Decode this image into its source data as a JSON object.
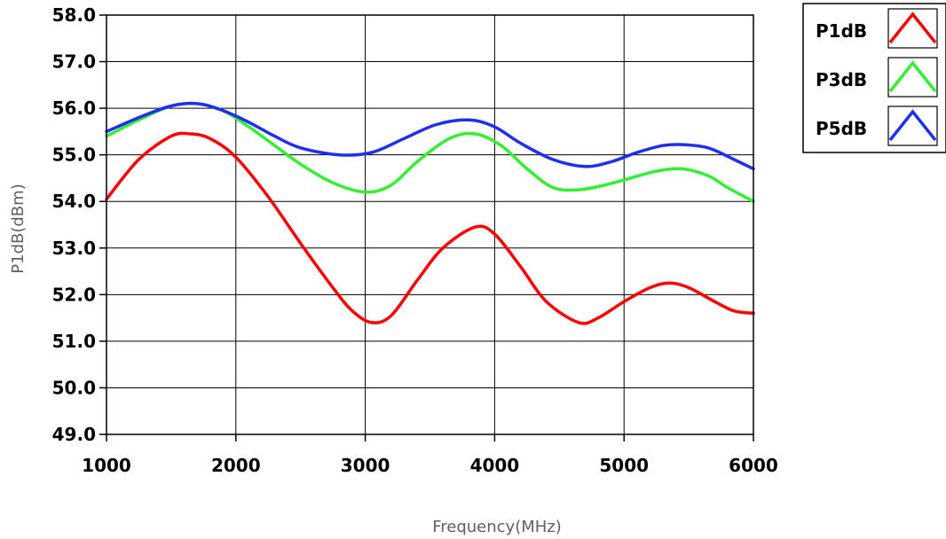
{
  "chart_data": {
    "type": "line",
    "title": "",
    "xlabel": "Frequency(MHz)",
    "ylabel": "P1dB(dBm)",
    "xlim": [
      1000,
      6000
    ],
    "ylim": [
      49,
      58
    ],
    "x_ticks": [
      "1000",
      "2000",
      "3000",
      "4000",
      "5000",
      "6000"
    ],
    "y_ticks": [
      "49.0",
      "50.0",
      "51.0",
      "52.0",
      "53.0",
      "54.0",
      "55.0",
      "56.0",
      "57.0",
      "58.0"
    ],
    "grid": true,
    "legend_position": "top-right outside",
    "series": [
      {
        "name": "P1dB",
        "color": "#ff0000",
        "x": [
          1000,
          1250,
          1500,
          1650,
          1800,
          2000,
          2250,
          2500,
          2750,
          2900,
          3050,
          3200,
          3400,
          3600,
          3850,
          4000,
          4200,
          4400,
          4650,
          4800,
          5000,
          5200,
          5350,
          5500,
          5700,
          5850,
          6000
        ],
        "y": [
          54.05,
          54.9,
          55.4,
          55.45,
          55.35,
          54.95,
          54.1,
          53.1,
          52.15,
          51.65,
          51.4,
          51.55,
          52.3,
          53.0,
          53.45,
          53.3,
          52.6,
          51.85,
          51.4,
          51.5,
          51.85,
          52.15,
          52.25,
          52.15,
          51.85,
          51.65,
          51.6
        ]
      },
      {
        "name": "P3dB",
        "color": "#33ee33",
        "x": [
          1000,
          1250,
          1500,
          1700,
          1900,
          2100,
          2300,
          2500,
          2750,
          3000,
          3200,
          3400,
          3650,
          3850,
          4050,
          4250,
          4450,
          4650,
          4850,
          5050,
          5250,
          5450,
          5650,
          5800,
          6000
        ],
        "y": [
          55.4,
          55.75,
          56.05,
          56.1,
          55.95,
          55.6,
          55.2,
          54.8,
          54.4,
          54.2,
          54.35,
          54.85,
          55.35,
          55.45,
          55.2,
          54.7,
          54.3,
          54.25,
          54.35,
          54.5,
          54.65,
          54.7,
          54.55,
          54.3,
          54.0
        ]
      },
      {
        "name": "P5dB",
        "color": "#1f2ff0",
        "x": [
          1000,
          1250,
          1500,
          1700,
          1900,
          2100,
          2300,
          2500,
          2800,
          3050,
          3300,
          3550,
          3800,
          4000,
          4200,
          4450,
          4700,
          4900,
          5100,
          5300,
          5450,
          5650,
          5850,
          6000
        ],
        "y": [
          55.5,
          55.8,
          56.05,
          56.1,
          55.95,
          55.7,
          55.4,
          55.15,
          55.0,
          55.05,
          55.35,
          55.65,
          55.75,
          55.6,
          55.25,
          54.9,
          54.75,
          54.85,
          55.05,
          55.2,
          55.22,
          55.15,
          54.9,
          54.7
        ]
      }
    ]
  }
}
